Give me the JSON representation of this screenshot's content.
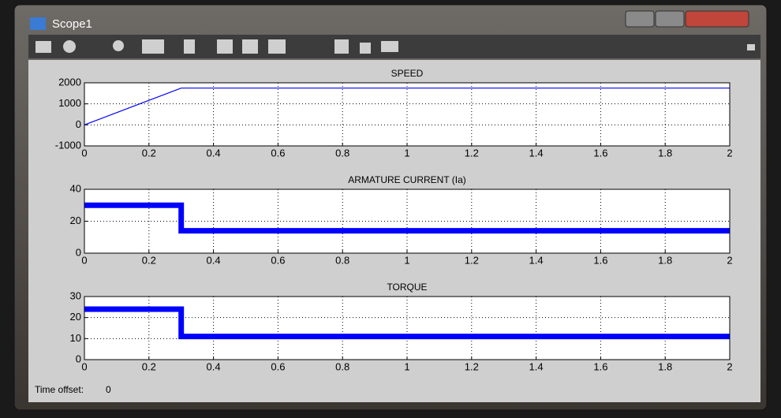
{
  "window": {
    "title": "Scope1"
  },
  "chart_data": [
    {
      "type": "line",
      "title": "SPEED",
      "x": [
        0,
        0.3,
        2
      ],
      "values": [
        0,
        1750,
        1750
      ],
      "color": "#0000ff",
      "xlim": [
        0,
        2
      ],
      "xticks": [
        0,
        0.2,
        0.4,
        0.6,
        0.8,
        1,
        1.2,
        1.4,
        1.6,
        1.8,
        2
      ],
      "ylim": [
        -1000,
        2000
      ],
      "yticks": [
        -1000,
        0,
        1000,
        2000
      ],
      "grid": true
    },
    {
      "type": "line",
      "title": "ARMATURE CURRENT (Ia)",
      "x": [
        0,
        0.3,
        0.3,
        2
      ],
      "values": [
        30,
        30,
        14,
        14
      ],
      "color": "#0000ff",
      "xlim": [
        0,
        2
      ],
      "xticks": [
        0,
        0.2,
        0.4,
        0.6,
        0.8,
        1,
        1.2,
        1.4,
        1.6,
        1.8,
        2
      ],
      "ylim": [
        0,
        40
      ],
      "yticks": [
        0,
        20,
        40
      ],
      "grid": true
    },
    {
      "type": "line",
      "title": "TORQUE",
      "x": [
        0,
        0.3,
        0.3,
        2
      ],
      "values": [
        24,
        24,
        11,
        11
      ],
      "color": "#0000ff",
      "xlim": [
        0,
        2
      ],
      "xticks": [
        0,
        0.2,
        0.4,
        0.6,
        0.8,
        1,
        1.2,
        1.4,
        1.6,
        1.8,
        2
      ],
      "ylim": [
        0,
        30
      ],
      "yticks": [
        0,
        10,
        20,
        30
      ],
      "grid": true
    }
  ],
  "footer": {
    "label": "Time offset:",
    "value": 0
  }
}
